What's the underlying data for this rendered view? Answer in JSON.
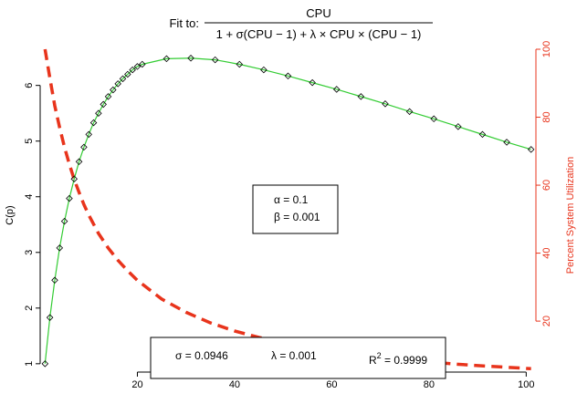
{
  "chart_data": {
    "type": "line",
    "title": {
      "prefix": "Fit to:",
      "numerator": "CPU",
      "denominator": "1 + σ(CPU − 1) + λ × CPU × (CPU − 1)"
    },
    "xlabel": "",
    "ylabel_left": "C(p)",
    "ylabel_right": "Percent System Utilization",
    "xlim": [
      0,
      102
    ],
    "ylim_left": [
      0.85,
      6.65
    ],
    "ylim_right": [
      5,
      100
    ],
    "x_ticks": [
      "20",
      "40",
      "60",
      "80",
      "100"
    ],
    "y_left_ticks": [
      "1",
      "2",
      "3",
      "4",
      "5",
      "6"
    ],
    "y_right_ticks": [
      "20",
      "40",
      "60",
      "80",
      "100"
    ],
    "grid": false,
    "series": [
      {
        "role": "observed points (circles)",
        "axis": "left",
        "color": "#000000",
        "x": [
          1,
          2,
          3,
          4,
          5,
          6,
          7,
          8,
          9,
          10,
          11,
          12,
          13,
          14,
          15,
          16,
          17,
          18,
          19,
          20,
          21,
          26,
          31,
          36,
          41,
          46,
          51,
          56,
          61,
          66,
          71,
          76,
          81,
          86,
          91,
          96,
          101
        ],
        "y": [
          1.0,
          1.83,
          2.5,
          3.08,
          3.56,
          3.97,
          4.32,
          4.63,
          4.89,
          5.12,
          5.33,
          5.5,
          5.66,
          5.8,
          5.92,
          6.03,
          6.12,
          6.2,
          6.28,
          6.34,
          6.38,
          6.48,
          6.49,
          6.46,
          6.38,
          6.28,
          6.17,
          6.05,
          5.93,
          5.8,
          5.67,
          5.53,
          5.4,
          5.26,
          5.12,
          4.98,
          4.85
        ]
      },
      {
        "role": "fitted curve (solid)",
        "axis": "left",
        "color": "#33cc33",
        "x": [
          1,
          2,
          3,
          4,
          5,
          6,
          7,
          8,
          9,
          10,
          11,
          12,
          13,
          14,
          15,
          16,
          17,
          18,
          19,
          20,
          21,
          26,
          31,
          36,
          41,
          46,
          51,
          56,
          61,
          66,
          71,
          76,
          81,
          86,
          91,
          96,
          101
        ],
        "y": [
          1.0,
          1.83,
          2.5,
          3.08,
          3.56,
          3.97,
          4.32,
          4.63,
          4.89,
          5.12,
          5.33,
          5.5,
          5.66,
          5.8,
          5.92,
          6.03,
          6.12,
          6.2,
          6.28,
          6.34,
          6.38,
          6.48,
          6.49,
          6.46,
          6.38,
          6.28,
          6.17,
          6.05,
          5.93,
          5.8,
          5.67,
          5.53,
          5.4,
          5.26,
          5.12,
          4.98,
          4.85
        ]
      },
      {
        "role": "percent system utilization (dashed)",
        "axis": "right",
        "color": "#e8341c",
        "x": [
          1,
          2,
          3,
          4,
          5,
          6,
          7,
          8,
          9,
          10,
          12,
          14,
          16,
          18,
          20,
          25,
          30,
          35,
          40,
          45,
          50,
          55,
          60,
          65,
          70,
          75,
          80,
          85,
          90,
          95,
          101
        ],
        "y": [
          100,
          91.5,
          83.4,
          77.0,
          71.2,
          66.2,
          61.7,
          57.9,
          54.3,
          51.2,
          45.8,
          41.5,
          37.9,
          34.8,
          32.0,
          26.5,
          22.6,
          19.5,
          17.1,
          15.2,
          13.6,
          12.2,
          11.1,
          10.2,
          9.4,
          8.6,
          8.0,
          7.4,
          6.9,
          6.5,
          6.0
        ]
      }
    ],
    "annotations": {
      "params_box": [
        "α = 0.1",
        "β = 0.001"
      ],
      "fit_box": {
        "sigma": "σ = 0.0946",
        "lambda": "λ = 0.001",
        "r2_base": "R",
        "r2_sup": "2",
        "r2_value": " = 0.9999"
      }
    }
  }
}
